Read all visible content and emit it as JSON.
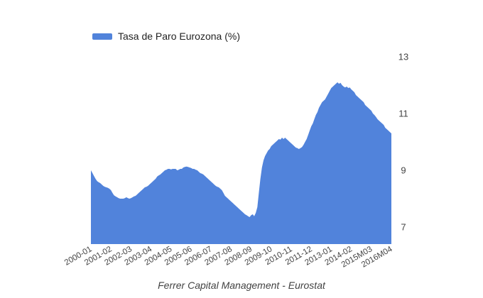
{
  "legend": {
    "label": "Tasa de Paro Eurozona (%)"
  },
  "caption": {
    "text": "Ferrer Capital Management - Eurostat"
  },
  "chart_data": {
    "type": "area",
    "title": "",
    "series_name": "Tasa de Paro Eurozona (%)",
    "fill_color": "#5183DB",
    "axis_text_color": "#444444",
    "legend_text_color": "#222222",
    "grid": false,
    "legend_position": "top-left",
    "y_axis_side": "right",
    "y_ticks": [
      7,
      9,
      11,
      13
    ],
    "ylim": [
      6.4,
      13.3
    ],
    "x_labels": [
      "2000-01",
      "2001-02",
      "2002-03",
      "2003-04",
      "2004-05",
      "2005-06",
      "2006-07",
      "2007-08",
      "2008-09",
      "2009-10",
      "2010-11",
      "2011-12",
      "2013-01",
      "2014-02",
      "2015M03",
      "2016M04"
    ],
    "label_every": 13,
    "x_start": "2000-01",
    "x_end": "2016-04",
    "values": [
      9.0,
      8.9,
      8.8,
      8.7,
      8.62,
      8.58,
      8.55,
      8.5,
      8.45,
      8.42,
      8.4,
      8.38,
      8.35,
      8.3,
      8.2,
      8.12,
      8.08,
      8.05,
      8.02,
      8.0,
      8.0,
      8.0,
      8.02,
      8.05,
      8.02,
      8.0,
      8.02,
      8.05,
      8.08,
      8.1,
      8.15,
      8.2,
      8.25,
      8.3,
      8.35,
      8.4,
      8.42,
      8.45,
      8.5,
      8.55,
      8.6,
      8.65,
      8.7,
      8.78,
      8.82,
      8.85,
      8.9,
      8.95,
      9.0,
      9.02,
      9.05,
      9.05,
      9.03,
      9.05,
      9.05,
      9.05,
      9.0,
      9.02,
      9.05,
      9.05,
      9.1,
      9.12,
      9.13,
      9.12,
      9.1,
      9.08,
      9.05,
      9.05,
      9.02,
      9.0,
      8.95,
      8.9,
      8.88,
      8.85,
      8.8,
      8.75,
      8.7,
      8.65,
      8.6,
      8.55,
      8.5,
      8.45,
      8.42,
      8.4,
      8.35,
      8.3,
      8.2,
      8.1,
      8.05,
      8.0,
      7.95,
      7.9,
      7.85,
      7.8,
      7.75,
      7.7,
      7.65,
      7.6,
      7.55,
      7.5,
      7.45,
      7.42,
      7.38,
      7.35,
      7.42,
      7.45,
      7.38,
      7.5,
      7.7,
      8.2,
      8.7,
      9.1,
      9.35,
      9.5,
      9.6,
      9.7,
      9.75,
      9.85,
      9.9,
      9.95,
      10.0,
      10.05,
      10.1,
      10.08,
      10.15,
      10.1,
      10.15,
      10.1,
      10.05,
      10.0,
      9.95,
      9.9,
      9.85,
      9.8,
      9.78,
      9.75,
      9.78,
      9.82,
      9.9,
      10.0,
      10.1,
      10.25,
      10.4,
      10.55,
      10.65,
      10.8,
      10.95,
      11.05,
      11.2,
      11.3,
      11.4,
      11.45,
      11.5,
      11.6,
      11.7,
      11.8,
      11.9,
      11.95,
      12.0,
      12.05,
      12.1,
      12.05,
      12.08,
      12.0,
      11.95,
      11.92,
      11.95,
      11.9,
      11.92,
      11.85,
      11.8,
      11.75,
      11.65,
      11.6,
      11.55,
      11.5,
      11.45,
      11.4,
      11.3,
      11.25,
      11.2,
      11.15,
      11.1,
      11.0,
      10.95,
      10.88,
      10.8,
      10.75,
      10.7,
      10.65,
      10.6,
      10.5,
      10.45,
      10.4,
      10.35,
      10.3
    ]
  }
}
